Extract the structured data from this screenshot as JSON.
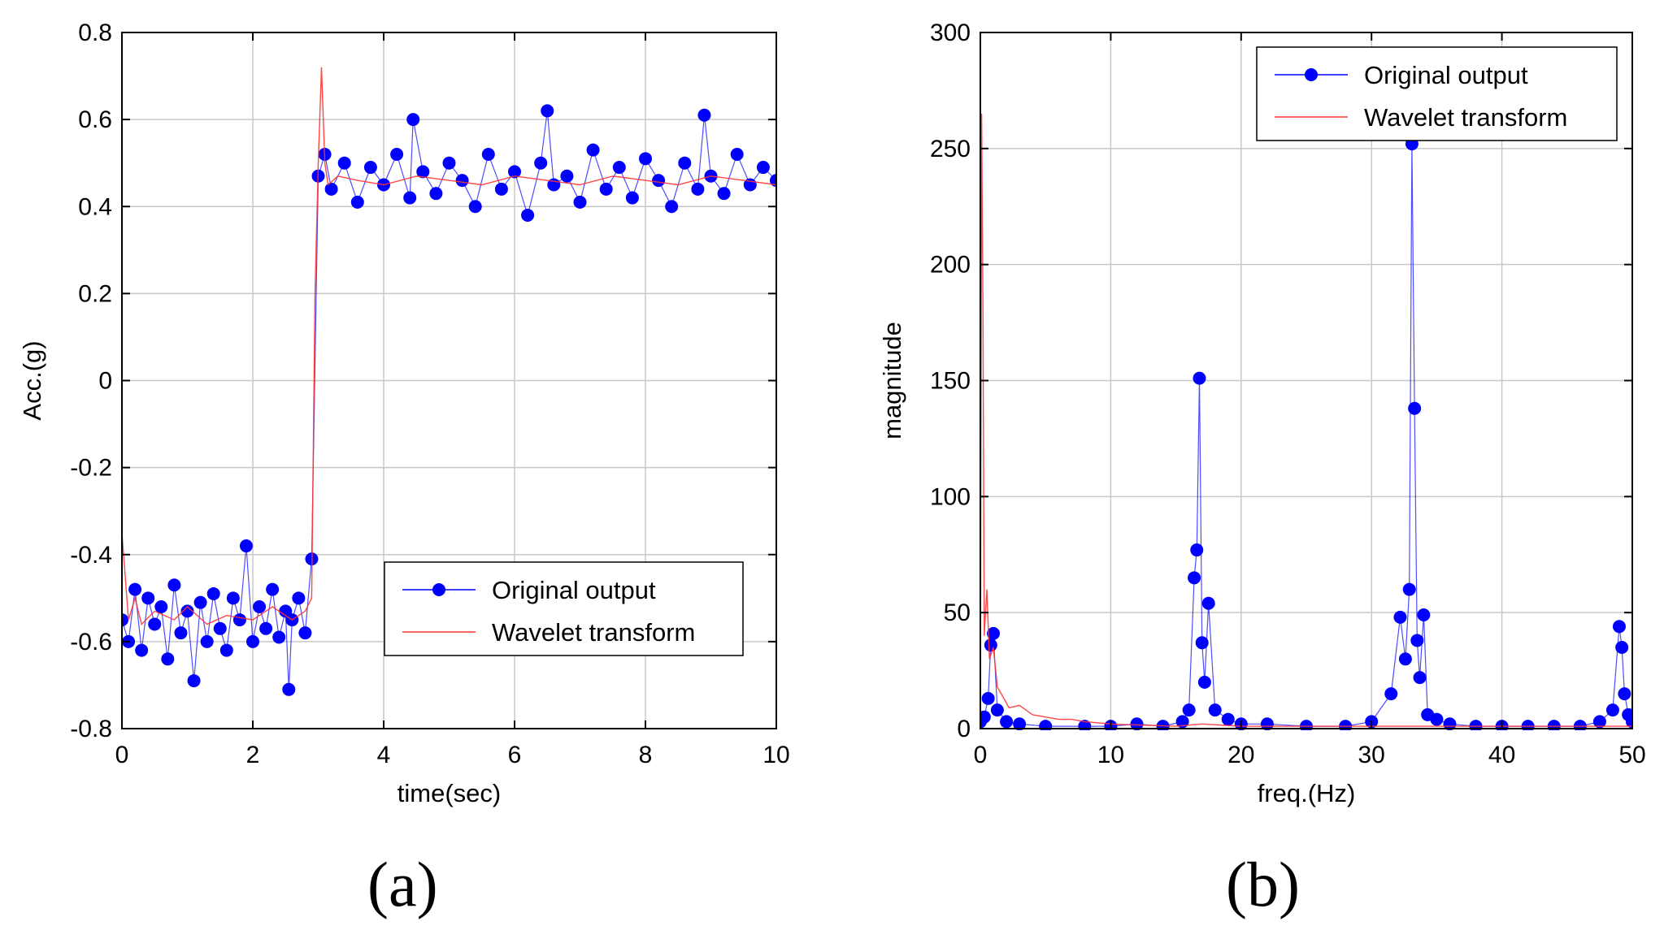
{
  "charts": [
    {
      "id": "a",
      "caption": "(a)",
      "chart_data": {
        "type": "line",
        "xlabel": "time(sec)",
        "ylabel": "Acc.(g)",
        "xlim": [
          0,
          10
        ],
        "ylim": [
          -0.8,
          0.8
        ],
        "xticks": [
          0,
          2,
          4,
          6,
          8,
          10
        ],
        "yticks": [
          -0.8,
          -0.6,
          -0.4,
          -0.2,
          0,
          0.2,
          0.4,
          0.6,
          0.8
        ],
        "xtick_labels": [
          "0",
          "2",
          "4",
          "6",
          "8",
          "10"
        ],
        "ytick_labels": [
          "-0.8",
          "-0.6",
          "-0.4",
          "-0.2",
          "0",
          "0.2",
          "0.4",
          "0.6",
          "0.8"
        ],
        "grid": true,
        "legend_position": "lower-right",
        "series": [
          {
            "name": "Original output",
            "style": "line-with-markers",
            "color": "#0000ff",
            "description_model": "step signal: mean -0.55 for t<3 s, mean 0.46 for t>3 s, noise ~0.05",
            "x": [
              0,
              0.1,
              0.2,
              0.3,
              0.4,
              0.5,
              0.6,
              0.7,
              0.8,
              0.9,
              1.0,
              1.1,
              1.2,
              1.3,
              1.4,
              1.5,
              1.6,
              1.7,
              1.8,
              1.9,
              2.0,
              2.1,
              2.2,
              2.3,
              2.4,
              2.5,
              2.55,
              2.6,
              2.7,
              2.8,
              2.9,
              3.0,
              3.1,
              3.2,
              3.4,
              3.6,
              3.8,
              4.0,
              4.2,
              4.4,
              4.45,
              4.6,
              4.8,
              5.0,
              5.2,
              5.4,
              5.6,
              5.8,
              6.0,
              6.2,
              6.4,
              6.5,
              6.6,
              6.8,
              7.0,
              7.2,
              7.4,
              7.6,
              7.8,
              8.0,
              8.2,
              8.4,
              8.6,
              8.8,
              8.9,
              9.0,
              9.2,
              9.4,
              9.6,
              9.8,
              10.0
            ],
            "y": [
              -0.55,
              -0.6,
              -0.48,
              -0.62,
              -0.5,
              -0.56,
              -0.52,
              -0.64,
              -0.47,
              -0.58,
              -0.53,
              -0.69,
              -0.51,
              -0.6,
              -0.49,
              -0.57,
              -0.62,
              -0.5,
              -0.55,
              -0.38,
              -0.6,
              -0.52,
              -0.57,
              -0.48,
              -0.59,
              -0.53,
              -0.71,
              -0.55,
              -0.5,
              -0.58,
              -0.41,
              0.47,
              0.52,
              0.44,
              0.5,
              0.41,
              0.49,
              0.45,
              0.52,
              0.42,
              0.6,
              0.48,
              0.43,
              0.5,
              0.46,
              0.4,
              0.52,
              0.44,
              0.48,
              0.38,
              0.5,
              0.62,
              0.45,
              0.47,
              0.41,
              0.53,
              0.44,
              0.49,
              0.42,
              0.51,
              0.46,
              0.4,
              0.5,
              0.44,
              0.61,
              0.47,
              0.43,
              0.52,
              0.45,
              0.49,
              0.46
            ]
          },
          {
            "name": "Wavelet transform",
            "style": "line",
            "color": "#ff3333",
            "x": [
              0,
              0.1,
              0.2,
              0.3,
              0.5,
              0.8,
              1.0,
              1.3,
              1.6,
              2.0,
              2.3,
              2.6,
              2.8,
              2.9,
              2.95,
              3.0,
              3.05,
              3.1,
              3.15,
              3.3,
              3.6,
              4.0,
              4.5,
              5.0,
              5.5,
              6.0,
              6.5,
              7.0,
              7.5,
              8.0,
              8.5,
              9.0,
              9.5,
              10.0
            ],
            "y": [
              -0.35,
              -0.55,
              -0.5,
              -0.56,
              -0.53,
              -0.55,
              -0.52,
              -0.56,
              -0.54,
              -0.55,
              -0.52,
              -0.55,
              -0.53,
              -0.5,
              0.2,
              0.5,
              0.72,
              0.5,
              0.45,
              0.47,
              0.46,
              0.45,
              0.47,
              0.46,
              0.45,
              0.47,
              0.46,
              0.45,
              0.47,
              0.46,
              0.45,
              0.47,
              0.46,
              0.45
            ]
          }
        ]
      }
    },
    {
      "id": "b",
      "caption": "(b)",
      "chart_data": {
        "type": "line",
        "xlabel": "freq.(Hz)",
        "ylabel": "magnitude",
        "xlim": [
          0,
          50
        ],
        "ylim": [
          0,
          300
        ],
        "xticks": [
          0,
          10,
          20,
          30,
          40,
          50
        ],
        "yticks": [
          0,
          50,
          100,
          150,
          200,
          250,
          300
        ],
        "xtick_labels": [
          "0",
          "10",
          "20",
          "30",
          "40",
          "50"
        ],
        "ytick_labels": [
          "0",
          "50",
          "100",
          "150",
          "200",
          "250",
          "300"
        ],
        "grid": true,
        "legend_position": "top-right",
        "series": [
          {
            "name": "Original output",
            "style": "line-with-markers",
            "color": "#0000ff",
            "x": [
              0,
              0.3,
              0.6,
              0.8,
              1.0,
              1.3,
              2,
              3,
              5,
              8,
              10,
              12,
              14,
              15.5,
              16,
              16.4,
              16.6,
              16.8,
              17.0,
              17.2,
              17.5,
              18,
              19,
              20,
              22,
              25,
              28,
              30,
              31.5,
              32.2,
              32.6,
              32.9,
              33.1,
              33.3,
              33.5,
              33.7,
              34.0,
              34.3,
              35,
              36,
              38,
              40,
              42,
              44,
              46,
              47.5,
              48.5,
              49.0,
              49.2,
              49.4,
              49.7,
              50
            ],
            "y": [
              3,
              5,
              13,
              36,
              41,
              8,
              3,
              2,
              1,
              1,
              1,
              2,
              1,
              3,
              8,
              65,
              77,
              151,
              37,
              20,
              54,
              8,
              4,
              2,
              2,
              1,
              1,
              3,
              15,
              48,
              30,
              60,
              252,
              138,
              38,
              22,
              49,
              6,
              4,
              2,
              1,
              1,
              1,
              1,
              1,
              3,
              8,
              44,
              35,
              15,
              6,
              3
            ]
          },
          {
            "name": "Wavelet transform",
            "style": "line",
            "color": "#ff3333",
            "x": [
              0,
              0.1,
              0.2,
              0.3,
              0.5,
              0.7,
              1.0,
              1.3,
              1.7,
              2.2,
              3.0,
              4.0,
              5.0,
              6.0,
              7.0,
              8.0,
              10,
              15,
              17,
              20,
              30,
              33,
              40,
              49,
              50
            ],
            "y": [
              0,
              265,
              180,
              40,
              60,
              30,
              35,
              18,
              14,
              9,
              10,
              6,
              5,
              4,
              4,
              3,
              2,
              1,
              2,
              1,
              1,
              1,
              1,
              1,
              1
            ]
          }
        ]
      }
    }
  ]
}
